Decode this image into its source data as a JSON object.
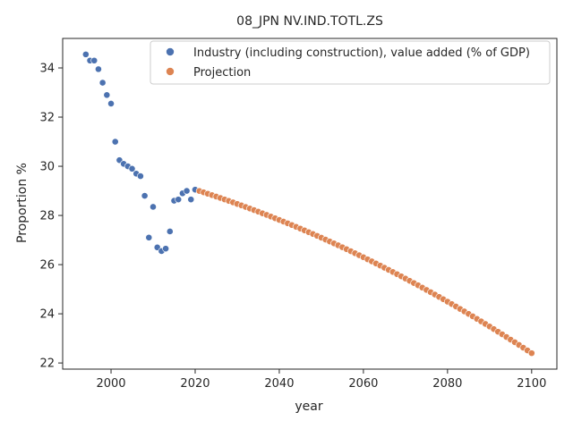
{
  "chart_data": {
    "type": "scatter",
    "title": "08_JPN NV.IND.TOTL.ZS",
    "xlabel": "year",
    "ylabel": "Proportion %",
    "xlim": [
      1988.5,
      2106
    ],
    "ylim": [
      21.75,
      35.2
    ],
    "x_ticks": [
      2000,
      2020,
      2040,
      2060,
      2080,
      2100
    ],
    "y_ticks": [
      22,
      24,
      26,
      28,
      30,
      32,
      34
    ],
    "grid": false,
    "legend_position": "top-right",
    "series": [
      {
        "name": "Industry (including construction), value added (% of GDP)",
        "color": "#4c72b0",
        "points": [
          [
            1994,
            34.55
          ],
          [
            1995,
            34.3
          ],
          [
            1996,
            34.3
          ],
          [
            1997,
            33.95
          ],
          [
            1998,
            33.4
          ],
          [
            1999,
            32.9
          ],
          [
            2000,
            32.55
          ],
          [
            2001,
            31.0
          ],
          [
            2002,
            30.25
          ],
          [
            2003,
            30.1
          ],
          [
            2004,
            30.0
          ],
          [
            2005,
            29.9
          ],
          [
            2006,
            29.7
          ],
          [
            2007,
            29.6
          ],
          [
            2008,
            28.8
          ],
          [
            2009,
            27.1
          ],
          [
            2010,
            28.35
          ],
          [
            2011,
            26.7
          ],
          [
            2012,
            26.55
          ],
          [
            2013,
            26.65
          ],
          [
            2014,
            27.35
          ],
          [
            2015,
            28.6
          ],
          [
            2016,
            28.65
          ],
          [
            2017,
            28.9
          ],
          [
            2018,
            29.0
          ],
          [
            2019,
            28.65
          ],
          [
            2020,
            29.05
          ]
        ]
      },
      {
        "name": "Projection",
        "color": "#dd8452",
        "x_start": 2021,
        "x_end": 2100,
        "y_start": 29.0,
        "y_end": 22.4
      }
    ]
  }
}
